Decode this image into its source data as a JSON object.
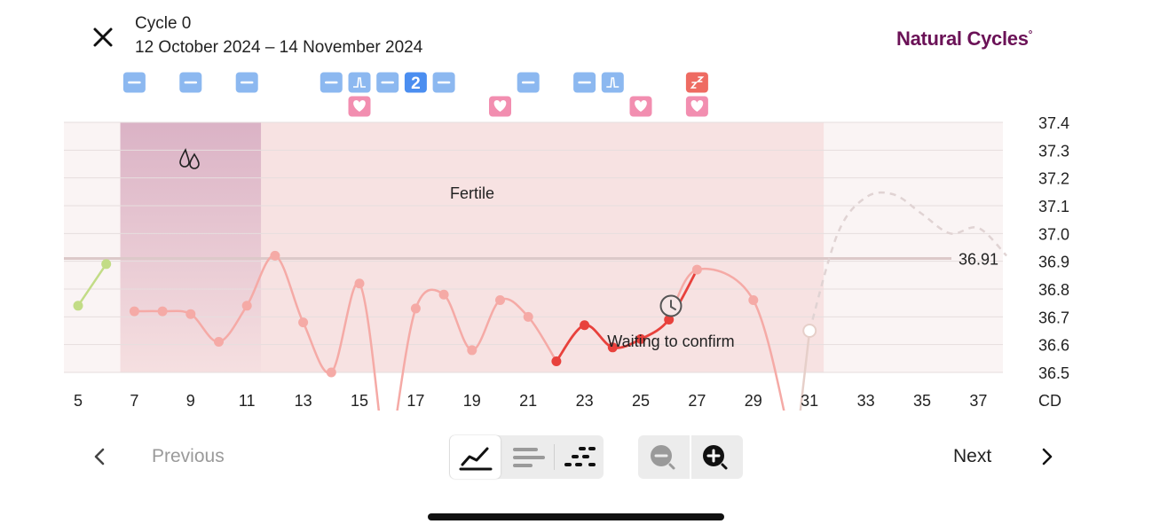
{
  "header": {
    "close_icon": "close-icon",
    "cycle_title": "Cycle 0",
    "date_range": "12 October 2024 – 14 November 2024",
    "brand": "Natural Cycles",
    "brand_mark": "°"
  },
  "chart": {
    "fertile_label": "Fertile",
    "waiting_label": "Waiting to confirm",
    "coverline_label": "36.91",
    "y_ticks": [
      "37.4",
      "37.3",
      "37.2",
      "37.1",
      "37.0",
      "36.9",
      "36.8",
      "36.7",
      "36.6",
      "36.5"
    ],
    "x_ticks": [
      "5",
      "7",
      "9",
      "11",
      "13",
      "15",
      "17",
      "19",
      "21",
      "23",
      "25",
      "27",
      "29",
      "31",
      "33",
      "35",
      "37"
    ],
    "x_axis_unit": "CD",
    "period_icon": "drops-icon",
    "clock_icon": "clock-icon",
    "colors": {
      "period_band": "#d9b0c4",
      "fertile_band": "#f6dcdc",
      "line_light": "#f5aaa6",
      "line_strong": "#e8413c",
      "line_green": "#c2dc86",
      "prediction": "#e0d3d3",
      "marker_blue": "#8cb8f0",
      "marker_heart": "#f28eb0",
      "marker_sleep": "#ee6b62"
    }
  },
  "chart_data": {
    "type": "line",
    "xlabel": "CD",
    "ylim": [
      36.5,
      37.4
    ],
    "xlim": [
      5,
      38
    ],
    "coverline": 36.91,
    "period_days": [
      7,
      11
    ],
    "fertile_days": [
      7,
      31
    ],
    "series": [
      {
        "name": "",
        "x": [
          5,
          6
        ],
        "values": [
          36.74,
          36.89
        ]
      },
      {
        "name": "",
        "x": [
          7,
          8,
          9,
          10,
          11,
          12,
          13,
          14,
          15,
          17,
          18,
          19,
          20,
          21
        ],
        "values": [
          36.72,
          36.72,
          36.71,
          36.61,
          36.74,
          36.92,
          36.68,
          36.5,
          36.82,
          36.73,
          36.78,
          36.58,
          36.76,
          36.7
        ]
      },
      {
        "name": "",
        "x": [
          22,
          23,
          24,
          25,
          26
        ],
        "values": [
          36.54,
          36.67,
          36.59,
          36.62,
          36.69
        ]
      },
      {
        "name": "",
        "x": [
          27,
          29
        ],
        "values": [
          36.87,
          36.76
        ]
      },
      {
        "name": "",
        "x": [
          31
        ],
        "values": [
          36.65
        ]
      }
    ],
    "predicted_line": {
      "x": [
        31,
        32,
        33,
        34,
        35,
        36,
        37,
        38
      ],
      "values": [
        36.65,
        37.0,
        37.13,
        37.14,
        37.07,
        37.0,
        37.02,
        36.92
      ]
    },
    "markers": [
      {
        "day": 7,
        "row": 1,
        "type": "dash"
      },
      {
        "day": 9,
        "row": 1,
        "type": "dash"
      },
      {
        "day": 11,
        "row": 1,
        "type": "dash"
      },
      {
        "day": 14,
        "row": 1,
        "type": "dash"
      },
      {
        "day": 15,
        "row": 1,
        "type": "peak"
      },
      {
        "day": 16,
        "row": 1,
        "type": "dash"
      },
      {
        "day": 17,
        "row": 1,
        "type": "number",
        "label": "2"
      },
      {
        "day": 18,
        "row": 1,
        "type": "dash"
      },
      {
        "day": 21,
        "row": 1,
        "type": "dash"
      },
      {
        "day": 23,
        "row": 1,
        "type": "dash"
      },
      {
        "day": 24,
        "row": 1,
        "type": "peak"
      },
      {
        "day": 27,
        "row": 1,
        "type": "sleep"
      },
      {
        "day": 15,
        "row": 2,
        "type": "heart"
      },
      {
        "day": 20,
        "row": 2,
        "type": "heart"
      },
      {
        "day": 25,
        "row": 2,
        "type": "heart"
      },
      {
        "day": 27,
        "row": 2,
        "type": "heart"
      }
    ]
  },
  "footer": {
    "prev_icon": "chevron-left-icon",
    "prev_label": "Previous",
    "next_label": "Next",
    "next_icon": "chevron-right-icon",
    "view_modes": [
      "graph-view-icon",
      "bars-view-icon",
      "dots-view-icon"
    ],
    "zoom_out_icon": "zoom-out-icon",
    "zoom_in_icon": "zoom-in-icon"
  }
}
